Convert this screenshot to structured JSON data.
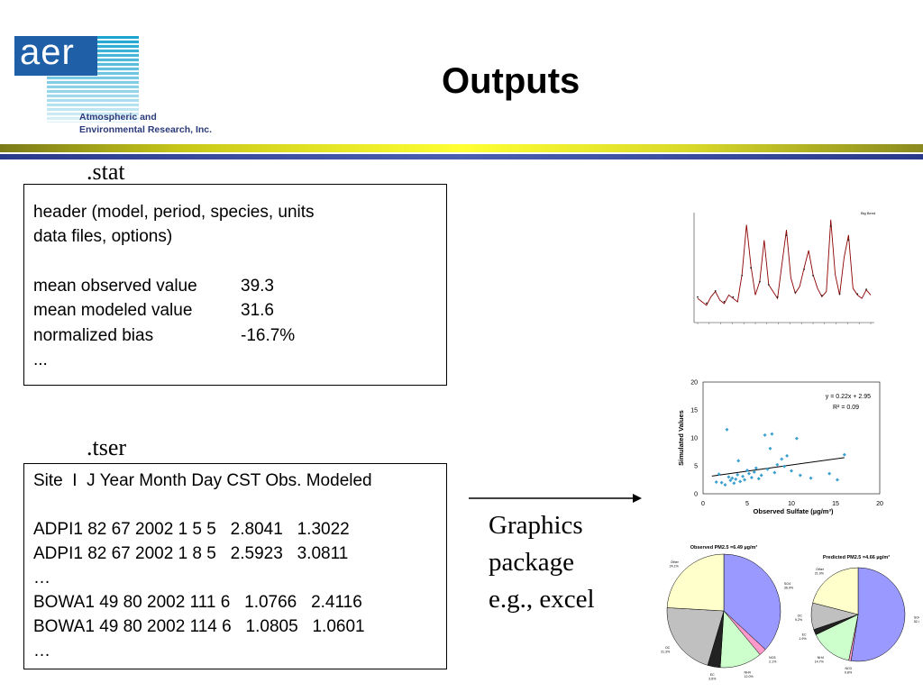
{
  "slide": {
    "title": "Outputs",
    "logo": {
      "wordmark": "aer",
      "line1": "Atmospheric and",
      "line2": "Environmental Research, Inc.",
      "brand_color": "#1f5fa8"
    }
  },
  "stat": {
    "label": ".stat",
    "header_line1": "header (model, period, species, units",
    "header_line2": "data files, options)",
    "rows": [
      {
        "name": "mean observed value",
        "value": "39.3"
      },
      {
        "name": "mean modeled value",
        "value": "31.6"
      },
      {
        "name": "normalized bias",
        "value": "-16.7%"
      }
    ],
    "ellipsis": "..."
  },
  "tser": {
    "label": ".tser",
    "header": "Site  I  J Year Month Day CST Obs. Modeled",
    "rows": [
      "ADPI1 82 67 2002 1 5 5   2.8041   1.3022",
      "ADPI1 82 67 2002 1 8 5   2.5923   3.0811",
      "…",
      "BOWA1 49 80 2002 111 6   1.0766   2.4116",
      "BOWA1 49 80 2002 114 6   1.0805   1.0601",
      "…"
    ]
  },
  "graphics": {
    "line1": "Graphics",
    "line2": "package",
    "line3": "e.g., excel"
  },
  "chart_data": [
    {
      "type": "line",
      "title": "Big Bend",
      "note": "thumbnail time series; values not legible",
      "series": [
        {
          "values": [
            1.2,
            1.0,
            0.8,
            1.3,
            1.6,
            1.1,
            0.9,
            1.4,
            1.2,
            1.0,
            2.6,
            5.5,
            3.1,
            1.4,
            2.2,
            4.6,
            2.0,
            1.6,
            1.2,
            3.2,
            5.2,
            2.4,
            1.5,
            1.9,
            3.0,
            4.0,
            2.6,
            1.8,
            1.3,
            1.6,
            5.8,
            2.6,
            1.4,
            3.6,
            4.9,
            1.8,
            1.4,
            1.2,
            1.7,
            1.4
          ]
        }
      ]
    },
    {
      "type": "scatter",
      "xlabel": "Observed Sulfate (µg/m³)",
      "ylabel": "Simulated Values",
      "xlim": [
        0,
        20
      ],
      "ylim": [
        0,
        20
      ],
      "x_ticks": [
        "0",
        "5",
        "10",
        "15",
        "20"
      ],
      "y_ticks": [
        "0",
        "5",
        "10",
        "15",
        "20"
      ],
      "equation": "y = 0.22x + 2.95",
      "r2": "R² = 0.09",
      "trend": {
        "slope": 0.22,
        "intercept": 2.95,
        "x_range": [
          1,
          16
        ]
      },
      "points": [
        [
          1.5,
          2.1
        ],
        [
          1.8,
          3.5
        ],
        [
          2.1,
          2.0
        ],
        [
          2.5,
          1.6
        ],
        [
          2.7,
          11.5
        ],
        [
          2.9,
          3.0
        ],
        [
          3.1,
          2.4
        ],
        [
          3.3,
          2.8
        ],
        [
          3.5,
          1.9
        ],
        [
          3.7,
          2.6
        ],
        [
          3.9,
          3.4
        ],
        [
          4.0,
          5.9
        ],
        [
          4.2,
          2.2
        ],
        [
          4.5,
          3.1
        ],
        [
          4.7,
          2.5
        ],
        [
          5.0,
          4.2
        ],
        [
          5.2,
          3.6
        ],
        [
          5.5,
          2.9
        ],
        [
          5.8,
          3.9
        ],
        [
          6.0,
          4.6
        ],
        [
          6.3,
          2.7
        ],
        [
          6.6,
          3.3
        ],
        [
          7.0,
          10.5
        ],
        [
          7.3,
          4.4
        ],
        [
          7.6,
          8.1
        ],
        [
          7.8,
          10.7
        ],
        [
          8.1,
          3.8
        ],
        [
          8.4,
          5.2
        ],
        [
          8.9,
          6.2
        ],
        [
          9.2,
          4.9
        ],
        [
          9.5,
          6.8
        ],
        [
          10.0,
          4.1
        ],
        [
          10.6,
          9.9
        ],
        [
          11.0,
          3.3
        ],
        [
          12.2,
          2.8
        ],
        [
          14.3,
          3.6
        ],
        [
          15.2,
          2.5
        ],
        [
          16.0,
          7.0
        ]
      ]
    },
    {
      "type": "pie",
      "title": "Observed PM2.5 =6.49 µg/m³",
      "slices": [
        {
          "label": "SO4",
          "value": 36.9,
          "color": "#9999ff"
        },
        {
          "label": "NO3",
          "value": 2.1,
          "color": "#ff99cc"
        },
        {
          "label": "NH4",
          "value": 12.0,
          "color": "#ccffcc"
        },
        {
          "label": "EC",
          "value": 3.6,
          "color": "#222222"
        },
        {
          "label": "OC",
          "value": 21.3,
          "color": "#c0c0c0"
        },
        {
          "label": "Other",
          "value": 24.1,
          "color": "#ffffcc"
        }
      ]
    },
    {
      "type": "pie",
      "title": "Predicted PM2.5 =4.66 µg/m³",
      "slices": [
        {
          "label": "SO4",
          "value": 52.4,
          "color": "#9999ff"
        },
        {
          "label": "NO3",
          "value": 0.8,
          "color": "#ff99cc"
        },
        {
          "label": "NH4",
          "value": 14.7,
          "color": "#ccffcc"
        },
        {
          "label": "EC",
          "value": 1.9,
          "color": "#222222"
        },
        {
          "label": "OC",
          "value": 9.2,
          "color": "#c0c0c0"
        },
        {
          "label": "Other",
          "value": 21.0,
          "color": "#ffffcc"
        }
      ]
    }
  ]
}
